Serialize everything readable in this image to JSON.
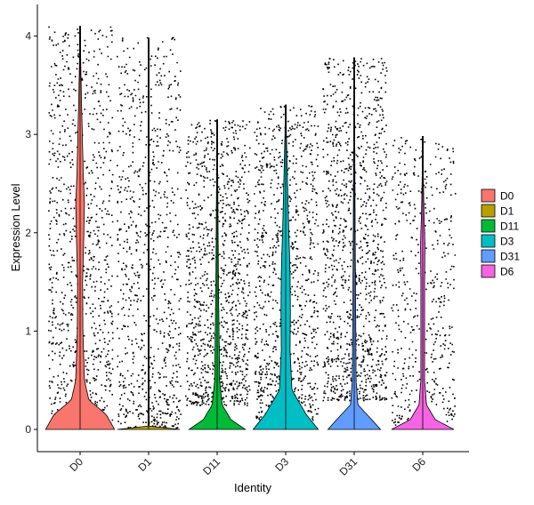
{
  "chart_data": {
    "type": "violin",
    "xlabel": "Identity",
    "ylabel": "Expression Level",
    "ylim": [
      -0.2,
      4.15
    ],
    "yticks": [
      0,
      1,
      2,
      3,
      4
    ],
    "grid": false,
    "legend_position": "right",
    "categories": [
      "D0",
      "D1",
      "D11",
      "D3",
      "D31",
      "D6"
    ],
    "series": [
      {
        "name": "D0",
        "color": "#F8766D",
        "max": 4.1,
        "point_density": 1.0,
        "points_low": 0.05,
        "points_high": 4.1,
        "violin": [
          [
            0.0,
            0.55
          ],
          [
            0.15,
            0.42
          ],
          [
            0.3,
            0.14
          ],
          [
            0.5,
            0.07
          ],
          [
            1.0,
            0.045
          ],
          [
            1.5,
            0.04
          ],
          [
            2.0,
            0.06
          ],
          [
            2.3,
            0.07
          ],
          [
            2.6,
            0.05
          ],
          [
            3.0,
            0.035
          ],
          [
            3.4,
            0.02
          ],
          [
            3.8,
            0.008
          ],
          [
            4.1,
            0.002
          ]
        ]
      },
      {
        "name": "D1",
        "color": "#B79F00",
        "max": 3.98,
        "point_density": 0.9,
        "points_low": 0.02,
        "points_high": 4.0,
        "violin": [
          [
            0.0,
            0.5
          ],
          [
            0.01,
            0.01
          ],
          [
            1.0,
            0.005
          ],
          [
            2.0,
            0.004
          ],
          [
            3.98,
            0.002
          ]
        ]
      },
      {
        "name": "D11",
        "color": "#00BA38",
        "max": 3.15,
        "point_density": 1.2,
        "points_low": 0.25,
        "points_high": 3.15,
        "violin": [
          [
            0.0,
            0.45
          ],
          [
            0.1,
            0.22
          ],
          [
            0.25,
            0.08
          ],
          [
            0.5,
            0.04
          ],
          [
            1.0,
            0.03
          ],
          [
            1.5,
            0.02
          ],
          [
            2.0,
            0.015
          ],
          [
            2.5,
            0.01
          ],
          [
            3.15,
            0.002
          ]
        ]
      },
      {
        "name": "D3",
        "color": "#00BFC4",
        "max": 3.3,
        "point_density": 1.1,
        "points_low": 0.1,
        "points_high": 3.3,
        "violin": [
          [
            0.0,
            0.52
          ],
          [
            0.15,
            0.33
          ],
          [
            0.4,
            0.1
          ],
          [
            0.8,
            0.07
          ],
          [
            1.2,
            0.075
          ],
          [
            1.6,
            0.07
          ],
          [
            2.0,
            0.05
          ],
          [
            2.5,
            0.03
          ],
          [
            3.0,
            0.012
          ],
          [
            3.3,
            0.002
          ]
        ]
      },
      {
        "name": "D31",
        "color": "#619CFF",
        "max": 3.78,
        "point_density": 1.25,
        "points_low": 0.3,
        "points_high": 3.78,
        "violin": [
          [
            0.0,
            0.42
          ],
          [
            0.1,
            0.28
          ],
          [
            0.25,
            0.06
          ],
          [
            0.5,
            0.03
          ],
          [
            1.0,
            0.025
          ],
          [
            1.5,
            0.02
          ],
          [
            2.0,
            0.015
          ],
          [
            2.5,
            0.012
          ],
          [
            3.0,
            0.008
          ],
          [
            3.78,
            0.002
          ]
        ]
      },
      {
        "name": "D6",
        "color": "#F564E3",
        "max": 2.98,
        "point_density": 0.55,
        "points_low": 0.05,
        "points_high": 2.98,
        "violin": [
          [
            0.0,
            0.5
          ],
          [
            0.1,
            0.2
          ],
          [
            0.25,
            0.06
          ],
          [
            0.5,
            0.03
          ],
          [
            1.0,
            0.03
          ],
          [
            1.5,
            0.03
          ],
          [
            1.9,
            0.035
          ],
          [
            2.2,
            0.02
          ],
          [
            2.6,
            0.008
          ],
          [
            2.98,
            0.002
          ]
        ]
      }
    ]
  }
}
